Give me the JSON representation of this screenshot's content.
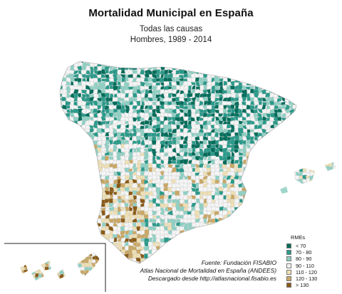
{
  "header": {
    "title": "Mortalidad Municipal en España",
    "subtitle_1": "Todas las causas",
    "subtitle_2": "Hombres, 1989 - 2014"
  },
  "source": {
    "line_1": "Fuente: Fundación FISABIO",
    "line_2": "Atlas Nacional de Mortalidad en España (ANDEES)",
    "line_3": "Descargado desde http://atlasnacional.fisabio.es"
  },
  "legend": {
    "title": "RMEs",
    "items": [
      {
        "label": "< 70",
        "color": "#006d5b"
      },
      {
        "label": "70 - 80",
        "color": "#2a9a8a"
      },
      {
        "label": "80 - 90",
        "color": "#8fd0c4"
      },
      {
        "label": "90 - 110",
        "color": "#f5f5f5"
      },
      {
        "label": "110 - 120",
        "color": "#eedfb3"
      },
      {
        "label": "120 - 130",
        "color": "#c9a765"
      },
      {
        "label": "> 130",
        "color": "#8a5a17"
      }
    ]
  },
  "colors": {
    "border": "#b8b8b8",
    "inset_frame": "#222222"
  }
}
